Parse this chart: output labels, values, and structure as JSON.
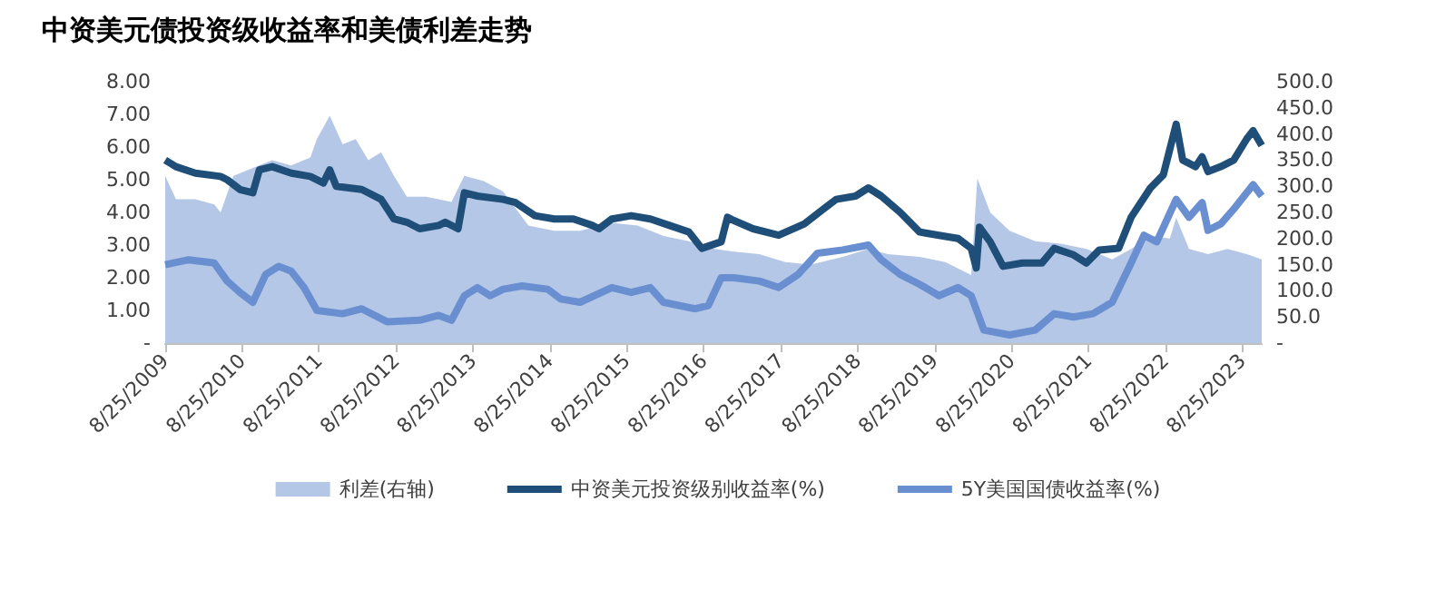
{
  "chart_data": {
    "type": "line",
    "title": "中资美元债投资级收益率和美债利差走势",
    "xlim": [
      "2009-08-25",
      "2023-11-25"
    ],
    "xticks": [
      {
        "value": "2009-08-25",
        "label": "8/25/2009"
      },
      {
        "value": "2010-08-25",
        "label": "8/25/2010"
      },
      {
        "value": "2011-08-25",
        "label": "8/25/2011"
      },
      {
        "value": "2012-08-25",
        "label": "8/25/2012"
      },
      {
        "value": "2013-08-25",
        "label": "8/25/2013"
      },
      {
        "value": "2014-08-25",
        "label": "8/25/2014"
      },
      {
        "value": "2015-08-25",
        "label": "8/25/2015"
      },
      {
        "value": "2016-08-25",
        "label": "8/25/2016"
      },
      {
        "value": "2017-08-25",
        "label": "8/25/2017"
      },
      {
        "value": "2018-08-25",
        "label": "8/25/2018"
      },
      {
        "value": "2019-08-25",
        "label": "8/25/2019"
      },
      {
        "value": "2020-08-25",
        "label": "8/25/2020"
      },
      {
        "value": "2021-08-25",
        "label": "8/25/2021"
      },
      {
        "value": "2022-08-25",
        "label": "8/25/2022"
      },
      {
        "value": "2023-08-25",
        "label": "8/25/2023"
      }
    ],
    "ylim": [
      0,
      8
    ],
    "yticks": [
      {
        "value": 0,
        "label": "-"
      },
      {
        "value": 1,
        "label": "1.00"
      },
      {
        "value": 2,
        "label": "2.00"
      },
      {
        "value": 3,
        "label": "3.00"
      },
      {
        "value": 4,
        "label": "4.00"
      },
      {
        "value": 5,
        "label": "5.00"
      },
      {
        "value": 6,
        "label": "6.00"
      },
      {
        "value": 7,
        "label": "7.00"
      },
      {
        "value": 8,
        "label": "8.00"
      }
    ],
    "y2lim": [
      0,
      500
    ],
    "y2ticks": [
      {
        "value": 0,
        "label": "-"
      },
      {
        "value": 50,
        "label": "50.0"
      },
      {
        "value": 100,
        "label": "100.0"
      },
      {
        "value": 150,
        "label": "150.0"
      },
      {
        "value": 200,
        "label": "200.0"
      },
      {
        "value": 250,
        "label": "250.0"
      },
      {
        "value": 300,
        "label": "300.0"
      },
      {
        "value": 350,
        "label": "350.0"
      },
      {
        "value": 400,
        "label": "400.0"
      },
      {
        "value": 450,
        "label": "450.0"
      },
      {
        "value": 500,
        "label": "500.0"
      }
    ],
    "legend": "bottom",
    "series": [
      {
        "name": "利差(右轴)",
        "type": "area",
        "axis": "y2",
        "color": "#b4c7e7",
        "x": [
          "2009-08-25",
          "2009-10-15",
          "2010-01-15",
          "2010-04-15",
          "2010-05-15",
          "2010-07-15",
          "2010-10-15",
          "2011-01-15",
          "2011-04-15",
          "2011-07-15",
          "2011-08-15",
          "2011-10-15",
          "2011-12-15",
          "2012-02-15",
          "2012-04-15",
          "2012-06-15",
          "2012-08-15",
          "2012-10-15",
          "2013-01-15",
          "2013-05-15",
          "2013-07-15",
          "2013-10-15",
          "2014-01-15",
          "2014-05-15",
          "2014-09-15",
          "2015-01-15",
          "2015-06-15",
          "2015-10-15",
          "2016-02-15",
          "2016-06-15",
          "2016-10-15",
          "2017-01-15",
          "2017-05-15",
          "2017-09-15",
          "2018-01-15",
          "2018-06-15",
          "2018-10-15",
          "2019-01-15",
          "2019-06-15",
          "2019-10-15",
          "2020-02-15",
          "2020-03-15",
          "2020-05-15",
          "2020-08-15",
          "2020-12-15",
          "2021-04-15",
          "2021-08-15",
          "2021-12-15",
          "2022-03-15",
          "2022-06-15",
          "2022-09-15",
          "2022-10-15",
          "2022-12-15",
          "2023-03-15",
          "2023-06-15",
          "2023-09-15",
          "2023-11-25"
        ],
        "values": [
          320,
          275,
          275,
          265,
          250,
          320,
          335,
          350,
          340,
          355,
          390,
          435,
          380,
          390,
          350,
          365,
          320,
          280,
          280,
          270,
          320,
          310,
          290,
          225,
          215,
          215,
          230,
          225,
          205,
          195,
          180,
          175,
          170,
          155,
          150,
          165,
          180,
          170,
          165,
          155,
          130,
          315,
          250,
          215,
          195,
          190,
          180,
          160,
          180,
          205,
          200,
          240,
          180,
          170,
          180,
          170,
          160
        ]
      },
      {
        "name": "中资美元投资级别收益率(%)",
        "color": "#1f4e79",
        "x": [
          "2009-08-25",
          "2009-10-15",
          "2010-01-15",
          "2010-05-15",
          "2010-06-15",
          "2010-08-15",
          "2010-10-15",
          "2010-11-15",
          "2011-01-15",
          "2011-04-15",
          "2011-07-15",
          "2011-09-15",
          "2011-10-15",
          "2011-11-15",
          "2012-03-15",
          "2012-06-15",
          "2012-08-15",
          "2012-10-15",
          "2012-12-15",
          "2013-03-15",
          "2013-04-15",
          "2013-06-15",
          "2013-07-15",
          "2013-09-15",
          "2014-01-15",
          "2014-03-15",
          "2014-06-15",
          "2014-09-15",
          "2014-12-15",
          "2015-03-15",
          "2015-04-15",
          "2015-06-15",
          "2015-09-15",
          "2015-12-15",
          "2016-03-15",
          "2016-06-15",
          "2016-08-15",
          "2016-11-15",
          "2016-12-15",
          "2017-01-15",
          "2017-04-15",
          "2017-08-15",
          "2017-12-15",
          "2018-03-15",
          "2018-05-15",
          "2018-08-15",
          "2018-10-15",
          "2018-12-15",
          "2019-03-15",
          "2019-06-15",
          "2019-09-15",
          "2019-12-15",
          "2020-02-15",
          "2020-03-10",
          "2020-03-25",
          "2020-05-15",
          "2020-07-15",
          "2020-10-15",
          "2021-01-15",
          "2021-03-15",
          "2021-06-15",
          "2021-08-15",
          "2021-10-15",
          "2022-01-15",
          "2022-03-15",
          "2022-06-15",
          "2022-08-15",
          "2022-10-15",
          "2022-11-15",
          "2023-01-15",
          "2023-02-15",
          "2023-03-15",
          "2023-05-15",
          "2023-07-15",
          "2023-09-15",
          "2023-10-15",
          "2023-11-25"
        ],
        "values": [
          5.6,
          5.4,
          5.2,
          5.1,
          5.0,
          4.7,
          4.6,
          5.3,
          5.4,
          5.2,
          5.1,
          4.9,
          5.3,
          4.8,
          4.7,
          4.4,
          3.8,
          3.7,
          3.5,
          3.6,
          3.7,
          3.5,
          4.6,
          4.5,
          4.4,
          4.3,
          3.9,
          3.8,
          3.8,
          3.6,
          3.5,
          3.8,
          3.9,
          3.8,
          3.6,
          3.4,
          2.9,
          3.1,
          3.85,
          3.75,
          3.5,
          3.3,
          3.65,
          4.1,
          4.4,
          4.5,
          4.75,
          4.5,
          4.0,
          3.4,
          3.3,
          3.2,
          2.9,
          2.3,
          3.55,
          3.1,
          2.35,
          2.45,
          2.45,
          2.9,
          2.7,
          2.45,
          2.85,
          2.9,
          3.85,
          4.75,
          5.15,
          6.7,
          5.6,
          5.4,
          5.7,
          5.25,
          5.4,
          5.6,
          6.25,
          6.5,
          6.05
        ]
      },
      {
        "name": "5Y美国国债收益率(%)",
        "color": "#6a8fd0",
        "x": [
          "2009-08-25",
          "2009-12-15",
          "2010-04-15",
          "2010-06-15",
          "2010-08-15",
          "2010-10-15",
          "2010-12-15",
          "2011-02-15",
          "2011-04-15",
          "2011-06-15",
          "2011-08-15",
          "2011-12-15",
          "2012-03-15",
          "2012-07-15",
          "2012-12-15",
          "2013-03-15",
          "2013-05-15",
          "2013-07-15",
          "2013-09-15",
          "2013-11-15",
          "2014-01-15",
          "2014-04-15",
          "2014-08-15",
          "2014-10-15",
          "2015-01-15",
          "2015-06-15",
          "2015-09-15",
          "2015-12-15",
          "2016-02-15",
          "2016-07-15",
          "2016-09-15",
          "2016-11-15",
          "2017-01-15",
          "2017-05-15",
          "2017-08-15",
          "2017-11-15",
          "2018-02-15",
          "2018-06-15",
          "2018-10-15",
          "2018-12-15",
          "2019-03-15",
          "2019-06-15",
          "2019-09-15",
          "2019-12-15",
          "2020-02-15",
          "2020-04-15",
          "2020-08-15",
          "2020-12-15",
          "2021-03-15",
          "2021-06-15",
          "2021-09-15",
          "2021-12-15",
          "2022-03-15",
          "2022-05-15",
          "2022-07-15",
          "2022-10-15",
          "2022-12-15",
          "2023-02-15",
          "2023-03-15",
          "2023-05-15",
          "2023-07-15",
          "2023-10-15",
          "2023-11-25"
        ],
        "values": [
          2.4,
          2.55,
          2.45,
          1.9,
          1.55,
          1.25,
          2.1,
          2.35,
          2.2,
          1.7,
          1.0,
          0.9,
          1.05,
          0.65,
          0.7,
          0.85,
          0.7,
          1.45,
          1.7,
          1.45,
          1.65,
          1.75,
          1.65,
          1.35,
          1.25,
          1.7,
          1.55,
          1.7,
          1.25,
          1.05,
          1.15,
          2.0,
          2.0,
          1.9,
          1.7,
          2.1,
          2.75,
          2.85,
          3.0,
          2.55,
          2.1,
          1.8,
          1.45,
          1.7,
          1.45,
          0.4,
          0.25,
          0.4,
          0.9,
          0.8,
          0.9,
          1.25,
          2.45,
          3.3,
          3.1,
          4.4,
          3.85,
          4.3,
          3.45,
          3.65,
          4.1,
          4.85,
          4.5
        ]
      }
    ]
  }
}
